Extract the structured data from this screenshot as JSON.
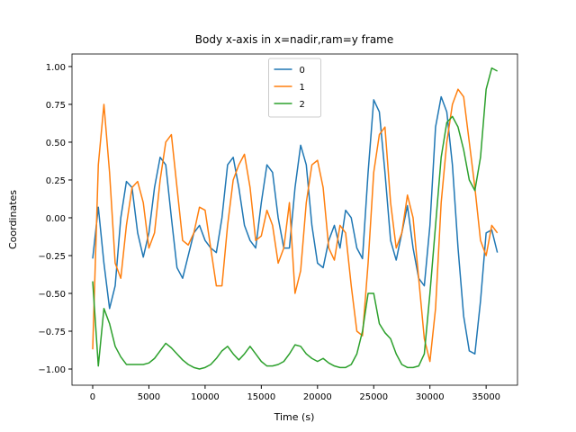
{
  "chart_data": {
    "type": "line",
    "title": "Body x-axis in x=nadir,ram=y frame",
    "xlabel": "Time (s)",
    "ylabel": "Coordinates",
    "x": [
      0,
      500,
      1000,
      1500,
      2000,
      2500,
      3000,
      3500,
      4000,
      4500,
      5000,
      5500,
      6000,
      6500,
      7000,
      7500,
      8000,
      8500,
      9000,
      9500,
      10000,
      10500,
      11000,
      11500,
      12000,
      12500,
      13000,
      13500,
      14000,
      14500,
      15000,
      15500,
      16000,
      16500,
      17000,
      17500,
      18000,
      18500,
      19000,
      19500,
      20000,
      20500,
      21000,
      21500,
      22000,
      22500,
      23000,
      23500,
      24000,
      24500,
      25000,
      25500,
      26000,
      26500,
      27000,
      27500,
      28000,
      28500,
      29000,
      29500,
      30000,
      30500,
      31000,
      31500,
      32000,
      32500,
      33000,
      33500,
      34000,
      34500,
      35000,
      35500,
      36000
    ],
    "series": [
      {
        "name": "0",
        "color": "#1f77b4",
        "values": [
          -0.27,
          0.07,
          -0.3,
          -0.6,
          -0.45,
          0.0,
          0.24,
          0.2,
          -0.1,
          -0.26,
          -0.1,
          0.2,
          0.4,
          0.35,
          0.0,
          -0.33,
          -0.4,
          -0.25,
          -0.1,
          -0.05,
          -0.15,
          -0.2,
          -0.23,
          0.0,
          0.35,
          0.4,
          0.2,
          -0.05,
          -0.15,
          -0.2,
          0.1,
          0.35,
          0.3,
          0.0,
          -0.2,
          -0.2,
          0.2,
          0.48,
          0.35,
          -0.05,
          -0.3,
          -0.33,
          -0.15,
          -0.05,
          -0.2,
          0.05,
          0.0,
          -0.2,
          -0.27,
          0.3,
          0.78,
          0.7,
          0.3,
          -0.15,
          -0.28,
          -0.1,
          0.08,
          -0.2,
          -0.4,
          -0.45,
          -0.05,
          0.6,
          0.8,
          0.7,
          0.35,
          -0.2,
          -0.65,
          -0.88,
          -0.9,
          -0.55,
          -0.1,
          -0.08,
          -0.23
        ]
      },
      {
        "name": "1",
        "color": "#ff7f0e",
        "values": [
          -0.87,
          0.35,
          0.75,
          0.3,
          -0.3,
          -0.4,
          -0.05,
          0.2,
          0.24,
          0.1,
          -0.2,
          -0.1,
          0.25,
          0.5,
          0.55,
          0.2,
          -0.15,
          -0.18,
          -0.1,
          0.07,
          0.05,
          -0.2,
          -0.45,
          -0.45,
          -0.05,
          0.25,
          0.35,
          0.42,
          0.2,
          -0.15,
          -0.12,
          0.05,
          -0.05,
          -0.3,
          -0.2,
          0.1,
          -0.5,
          -0.35,
          0.1,
          0.35,
          0.38,
          0.2,
          -0.2,
          -0.28,
          -0.05,
          -0.1,
          -0.45,
          -0.75,
          -0.78,
          -0.3,
          0.3,
          0.55,
          0.6,
          0.1,
          -0.2,
          -0.1,
          0.15,
          0.0,
          -0.4,
          -0.8,
          -0.95,
          -0.6,
          0.1,
          0.5,
          0.75,
          0.85,
          0.8,
          0.5,
          0.2,
          -0.15,
          -0.25,
          -0.05,
          -0.1
        ]
      },
      {
        "name": "2",
        "color": "#2ca02c",
        "values": [
          -0.42,
          -0.98,
          -0.6,
          -0.7,
          -0.85,
          -0.92,
          -0.97,
          -0.97,
          -0.97,
          -0.97,
          -0.96,
          -0.93,
          -0.88,
          -0.83,
          -0.86,
          -0.9,
          -0.94,
          -0.97,
          -0.99,
          -1.0,
          -0.99,
          -0.97,
          -0.93,
          -0.88,
          -0.85,
          -0.9,
          -0.94,
          -0.9,
          -0.85,
          -0.9,
          -0.95,
          -0.98,
          -0.98,
          -0.97,
          -0.95,
          -0.9,
          -0.84,
          -0.85,
          -0.9,
          -0.93,
          -0.95,
          -0.93,
          -0.96,
          -0.98,
          -0.99,
          -0.99,
          -0.97,
          -0.9,
          -0.75,
          -0.5,
          -0.5,
          -0.7,
          -0.76,
          -0.8,
          -0.9,
          -0.97,
          -0.99,
          -0.99,
          -0.98,
          -0.9,
          -0.5,
          -0.05,
          0.4,
          0.63,
          0.67,
          0.6,
          0.45,
          0.25,
          0.18,
          0.4,
          0.85,
          0.99,
          0.97
        ]
      }
    ],
    "xlim": [
      -1841,
      37790
    ],
    "xticks": [
      0,
      5000,
      10000,
      15000,
      20000,
      25000,
      30000,
      35000
    ],
    "ylim": [
      -1.107,
      1.083
    ],
    "yticks": [
      {
        "value": -1,
        "label": "−1.00"
      },
      {
        "value": -0.75,
        "label": "−0.75"
      },
      {
        "value": -0.5,
        "label": "−0.50"
      },
      {
        "value": -0.25,
        "label": "−0.25"
      },
      {
        "value": 0,
        "label": "0.00"
      },
      {
        "value": 0.25,
        "label": "0.25"
      },
      {
        "value": 0.5,
        "label": "0.50"
      },
      {
        "value": 0.75,
        "label": "0.75"
      },
      {
        "value": 1,
        "label": "1.00"
      }
    ],
    "legend": "upper center",
    "grid": false
  }
}
